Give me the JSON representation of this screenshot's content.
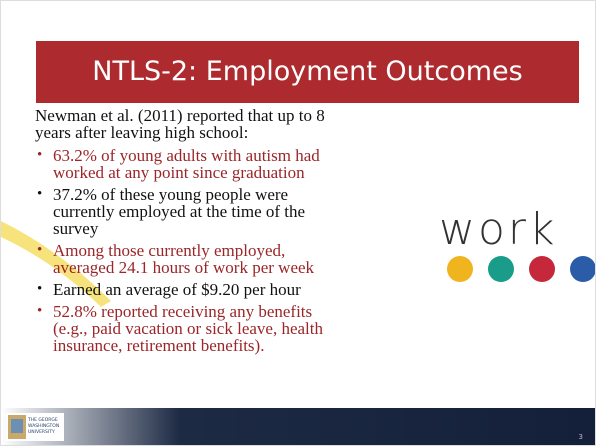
{
  "header": {
    "title": "NTLS-2: Employment Outcomes"
  },
  "intro": {
    "lines": [
      "Newman et al. (2011) reported that up to 8",
      "years after leaving high school:"
    ]
  },
  "bullets": [
    {
      "lines": [
        "63.2% of young adults with autism had",
        "worked at any point since graduation"
      ]
    },
    {
      "lines": [
        "37.2% of these young people were",
        "currently employed at the time of the",
        "survey"
      ]
    },
    {
      "lines": [
        "Among those currently employed,",
        "averaged 24.1 hours of work per week"
      ]
    },
    {
      "lines": [
        "Earned an average of $9.20 per hour"
      ]
    },
    {
      "lines": [
        "52.8% reported receiving any benefits",
        "(e.g., paid vacation or sick leave, health",
        "insurance, retirement benefits)."
      ]
    }
  ],
  "graphic": {
    "word": "work"
  },
  "logo": {
    "lines": [
      "THE GEORGE",
      "WASHINGTON",
      "UNIVERSITY"
    ]
  },
  "footer": {
    "page": "3"
  }
}
